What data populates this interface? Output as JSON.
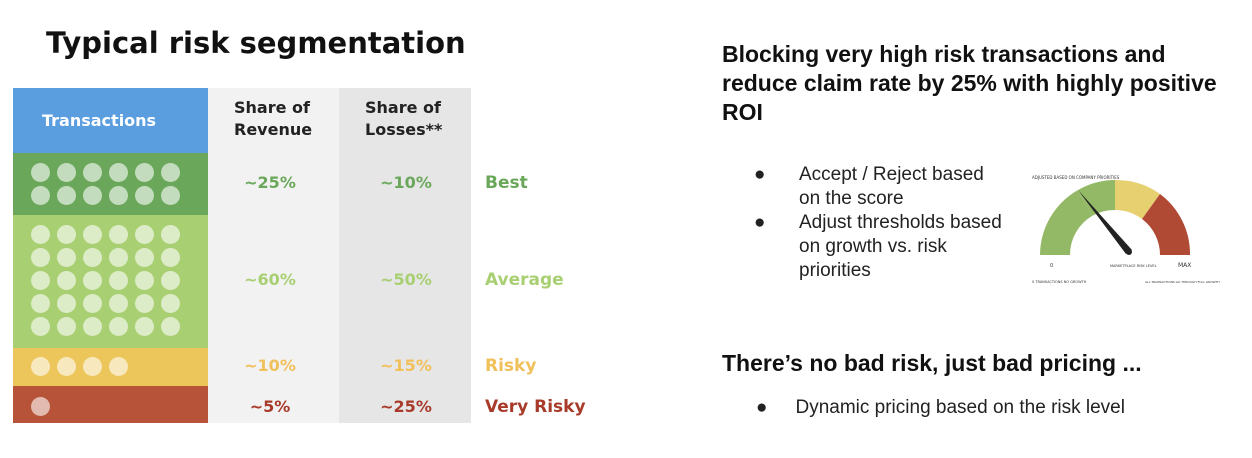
{
  "title": "Typical risk segmentation",
  "table": {
    "headers": {
      "transactions": "Transactions",
      "share_revenue": "Share of Revenue",
      "share_losses": "Share of Losses**"
    },
    "segments": [
      {
        "label": "Best",
        "revenue": "~25%",
        "losses": "~10%",
        "dots": 12,
        "color": "#6aa75a",
        "text_color": "#6aa75a"
      },
      {
        "label": "Average",
        "revenue": "~60%",
        "losses": "~50%",
        "dots": 30,
        "color": "#a8cf72",
        "text_color": "#a8cf72"
      },
      {
        "label": "Risky",
        "revenue": "~10%",
        "losses": "~15%",
        "dots": 4,
        "color": "#ecc65a",
        "text_color": "#f0c05a"
      },
      {
        "label": "Very Risky",
        "revenue": "~5%",
        "losses": "~25%",
        "dots": 1,
        "color": "#b65338",
        "text_color": "#a83a2a"
      }
    ]
  },
  "right": {
    "heading": "Blocking very high risk transactions and reduce claim rate by 25% with highly positive ROI",
    "bullets": [
      "Accept / Reject based on the score",
      "Adjust thresholds based on growth vs. risk priorities"
    ],
    "gauge": {
      "label_top_left": "ADJUSTED BASED ON COMPANY PRIORITIES",
      "label_zero": "0",
      "label_max": "MAX",
      "label_left_bottom": "0 TRANSACTIONS NO GROWTH",
      "label_mid": "MARKETPLACE RISK LEVEL",
      "label_right_bottom": "ALL TRANSACTIONS GO THROUGH FULL GROWTH"
    },
    "heading2": "There’s no bad risk, just bad pricing ...",
    "bullet2": "Dynamic pricing based on the risk level"
  }
}
